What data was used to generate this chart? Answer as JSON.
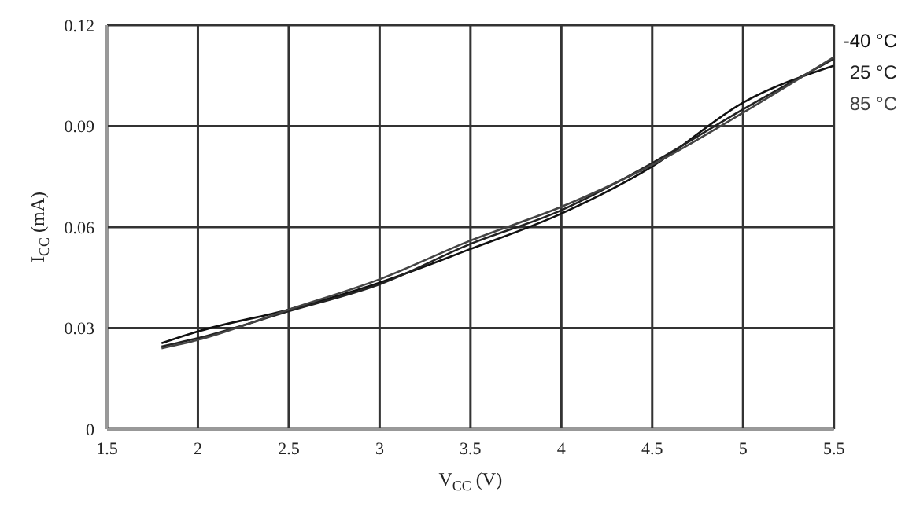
{
  "chart_data": {
    "type": "line",
    "xlabel": "V$_{CC}$ (V)",
    "ylabel": "I$_{CC}$ (mA)",
    "x": [
      1.8,
      2,
      2.5,
      3,
      3.5,
      4,
      4.5,
      5,
      5.5
    ],
    "series": [
      {
        "name": "-40 °C",
        "color": "#111111",
        "values": [
          0.0255,
          0.029,
          0.0355,
          0.0435,
          0.0535,
          0.064,
          0.078,
          0.097,
          0.108
        ]
      },
      {
        "name": "25 °C",
        "color": "#222222",
        "values": [
          0.0245,
          0.027,
          0.035,
          0.043,
          0.055,
          0.065,
          0.079,
          0.095,
          0.11
        ]
      },
      {
        "name": "85 °C",
        "color": "#444444",
        "values": [
          0.024,
          0.0265,
          0.0355,
          0.0445,
          0.056,
          0.066,
          0.0785,
          0.094,
          0.1105
        ]
      }
    ],
    "xlim": [
      1.5,
      5.5
    ],
    "xticks": [
      1.5,
      2,
      2.5,
      3,
      3.5,
      4,
      4.5,
      5,
      5.5
    ],
    "ylim": [
      0,
      0.12
    ],
    "yticks": [
      0,
      0.03,
      0.06,
      0.09,
      0.12
    ],
    "grid": true,
    "legend": "right",
    "marker": "none",
    "line_style": "solid"
  }
}
